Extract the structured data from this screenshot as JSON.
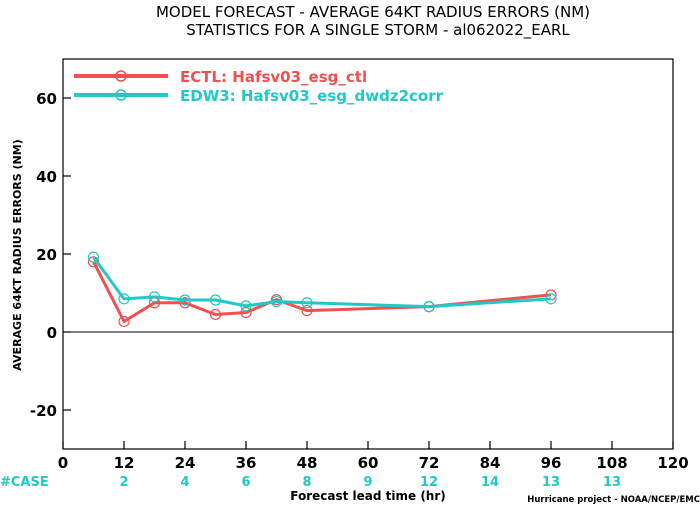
{
  "chart_data": {
    "type": "line",
    "title": "MODEL FORECAST - AVERAGE 64KT RADIUS ERRORS (NM)",
    "subtitle": "STATISTICS FOR A SINGLE STORM - al062022_EARL",
    "xlabel": "Forecast lead time (hr)",
    "ylabel": "AVERAGE 64KT RADIUS ERRORS (NM)",
    "xlim": [
      0,
      120
    ],
    "ylim": [
      -30,
      70
    ],
    "x_ticks": [
      0,
      12,
      24,
      36,
      48,
      60,
      72,
      84,
      96,
      108,
      120
    ],
    "y_ticks": [
      -20,
      0,
      20,
      40,
      60
    ],
    "legend_position": "top-left",
    "series": [
      {
        "name": "ECTL: Hafsv03_esg_ctl",
        "color": "#f05050",
        "x": [
          6,
          12,
          18,
          24,
          30,
          36,
          42,
          48,
          72,
          96
        ],
        "y": [
          18,
          2.7,
          7.5,
          7.5,
          4.5,
          5,
          8.3,
          5.5,
          6.5,
          9.5
        ]
      },
      {
        "name": "EDW3: Hafsv03_esg_dwdz2corr",
        "color": "#20c8c8",
        "x": [
          6,
          12,
          18,
          24,
          30,
          36,
          42,
          48,
          72,
          96
        ],
        "y": [
          19.2,
          8.5,
          9,
          8.2,
          8.2,
          6.7,
          7.8,
          7.5,
          6.5,
          8.5
        ]
      }
    ],
    "zero_line": true,
    "case_label": "#CASE",
    "case_counts": [
      {
        "x": 12,
        "n": "2"
      },
      {
        "x": 24,
        "n": "4"
      },
      {
        "x": 36,
        "n": "6"
      },
      {
        "x": 48,
        "n": "8"
      },
      {
        "x": 60,
        "n": "9"
      },
      {
        "x": 72,
        "n": "12"
      },
      {
        "x": 84,
        "n": "14"
      },
      {
        "x": 96,
        "n": "13"
      },
      {
        "x": 108,
        "n": "13"
      }
    ],
    "case_label_color": "#20c8c8",
    "credit": "Hurricane project - NOAA/NCEP/EMC"
  }
}
